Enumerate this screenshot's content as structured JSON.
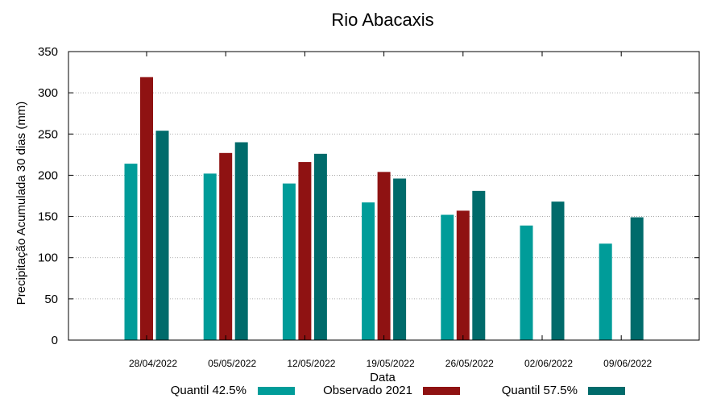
{
  "chart_data": {
    "type": "bar",
    "title": "Rio Abacaxis",
    "xlabel": "Data",
    "ylabel": "Precipitação Acumulada 30 dias (mm)",
    "ylim": [
      0,
      350
    ],
    "yticks": [
      0,
      50,
      100,
      150,
      200,
      250,
      300,
      350
    ],
    "grid": true,
    "legend_position": "bottom",
    "categories": [
      "28/04/2022",
      "05/05/2022",
      "12/05/2022",
      "19/05/2022",
      "26/05/2022",
      "02/06/2022",
      "09/06/2022"
    ],
    "series": [
      {
        "name": "Quantil 42.5%",
        "color": "#009c99",
        "values": [
          214,
          202,
          190,
          167,
          152,
          139,
          117
        ]
      },
      {
        "name": "Observado 2021",
        "color": "#8f1212",
        "values": [
          319,
          227,
          216,
          204,
          157,
          null,
          null
        ]
      },
      {
        "name": "Quantil 57.5%",
        "color": "#006b6b",
        "values": [
          254,
          240,
          226,
          196,
          181,
          168,
          149
        ]
      }
    ]
  }
}
